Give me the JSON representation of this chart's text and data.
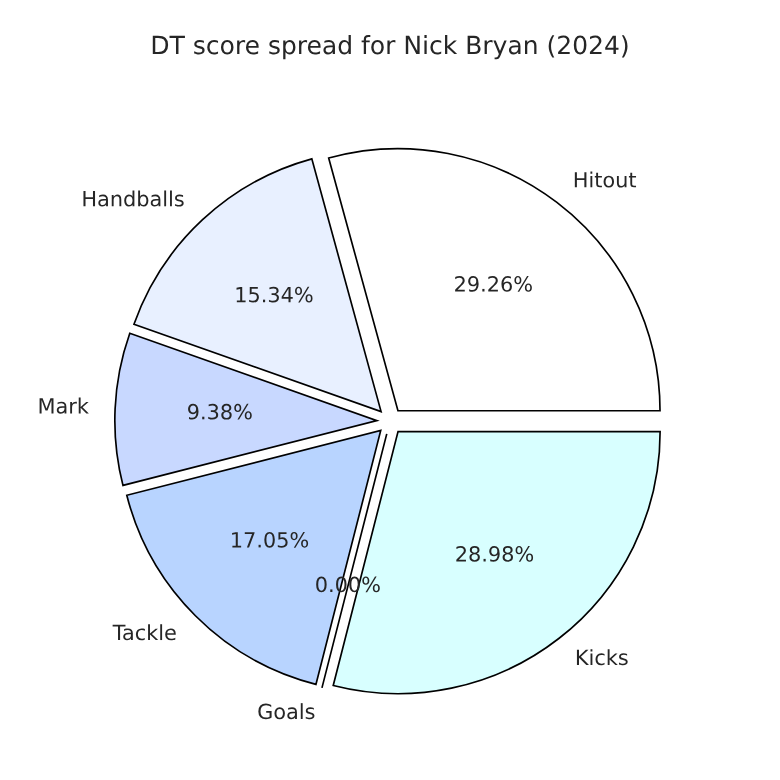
{
  "chart_data": {
    "type": "pie",
    "title": "DT score spread for Nick Bryan (2024)",
    "categories": [
      "Hitout",
      "Handballs",
      "Mark",
      "Tackle",
      "Goals",
      "Kicks"
    ],
    "values": [
      29.26,
      15.34,
      9.38,
      17.05,
      0.0,
      28.98
    ],
    "value_labels": [
      "29.26%",
      "15.34%",
      "9.38%",
      "17.05%",
      "0.00%",
      "28.98%"
    ],
    "colors": [
      "#ffffff",
      "#e8f0ff",
      "#c8d8ff",
      "#b8d4ff",
      "#a8c8ff",
      "#d8ffff"
    ]
  }
}
